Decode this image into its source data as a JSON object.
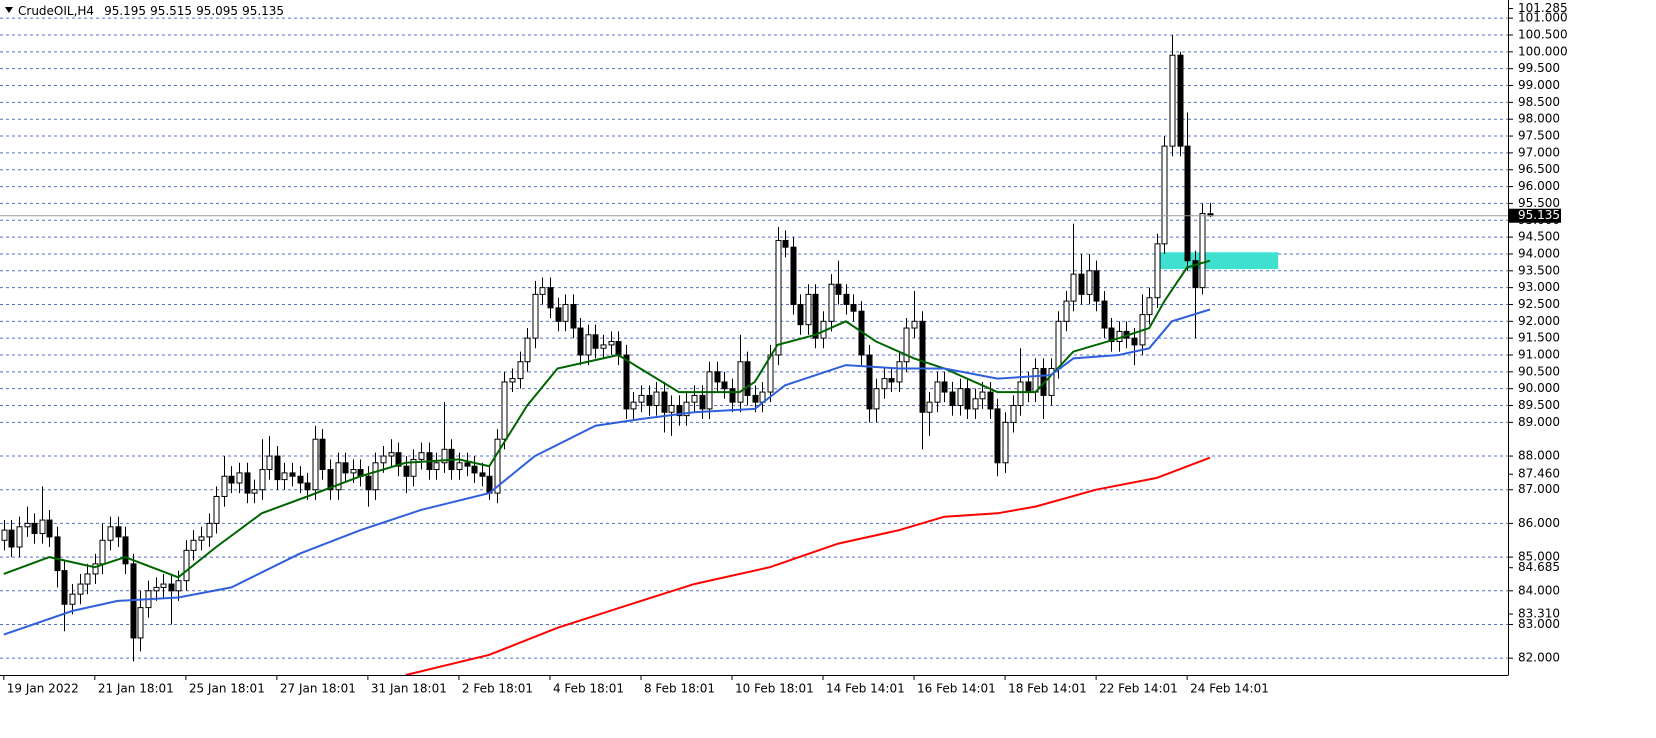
{
  "chart_data": {
    "type": "candlestick",
    "header": {
      "symbol": "CrudeOIL,H4",
      "open": 95.195,
      "high": 95.515,
      "low": 95.095,
      "close": 95.135
    },
    "ylim": [
      81.5,
      101.45
    ],
    "xlim": [
      -0.5,
      198.3
    ],
    "grid": true,
    "bull_color": "#ffffff",
    "bear_color": "#000000",
    "yticks": [
      {
        "value": 101,
        "label": "101.000"
      },
      {
        "value": 100.5,
        "label": "100.500"
      },
      {
        "value": 100,
        "label": "100.000"
      },
      {
        "value": 99.5,
        "label": "99.500"
      },
      {
        "value": 99,
        "label": "99.000"
      },
      {
        "value": 98.5,
        "label": "98.500"
      },
      {
        "value": 98,
        "label": "98.000"
      },
      {
        "value": 97.5,
        "label": "97.500"
      },
      {
        "value": 97,
        "label": "97.000"
      },
      {
        "value": 96.5,
        "label": "96.500"
      },
      {
        "value": 96,
        "label": "96.000"
      },
      {
        "value": 95.5,
        "label": "95.500"
      },
      {
        "value": 95,
        "label": "95.000"
      },
      {
        "value": 94.5,
        "label": "94.500"
      },
      {
        "value": 94,
        "label": "94.000"
      },
      {
        "value": 93.5,
        "label": "93.500"
      },
      {
        "value": 93,
        "label": "93.000"
      },
      {
        "value": 92.5,
        "label": "92.500"
      },
      {
        "value": 92,
        "label": "92.000"
      },
      {
        "value": 91.5,
        "label": "91.500"
      },
      {
        "value": 91,
        "label": "91.000"
      },
      {
        "value": 90.5,
        "label": "90.500"
      },
      {
        "value": 90,
        "label": "90.000"
      },
      {
        "value": 89.5,
        "label": "89.500"
      },
      {
        "value": 89,
        "label": "89.000"
      },
      {
        "value": 88,
        "label": "88.000"
      },
      {
        "value": 87,
        "label": "87.000"
      },
      {
        "value": 86,
        "label": "86.000"
      },
      {
        "value": 85,
        "label": "85.000"
      },
      {
        "value": 84,
        "label": "84.000"
      },
      {
        "value": 83,
        "label": "83.000"
      },
      {
        "value": 82,
        "label": "82.000"
      }
    ],
    "price_labels": [
      {
        "value": 101.285,
        "label": "101.285"
      },
      {
        "value": 87.46,
        "label": "87.460"
      },
      {
        "value": 84.685,
        "label": "84.685"
      },
      {
        "value": 83.31,
        "label": "83.310"
      }
    ],
    "xticks": [
      {
        "value": 0,
        "label": "19 Jan 2022"
      },
      {
        "value": 12,
        "label": "21 Jan 18:01"
      },
      {
        "value": 24,
        "label": "25 Jan 18:01"
      },
      {
        "value": 36,
        "label": "27 Jan 18:01"
      },
      {
        "value": 48,
        "label": "31 Jan 18:01"
      },
      {
        "value": 60,
        "label": "2 Feb 18:01"
      },
      {
        "value": 72,
        "label": "4 Feb 18:01"
      },
      {
        "value": 84,
        "label": "8 Feb 18:01"
      },
      {
        "value": 96,
        "label": "10 Feb 18:01"
      },
      {
        "value": 108,
        "label": "14 Feb 14:01"
      },
      {
        "value": 120,
        "label": "16 Feb 14:01"
      },
      {
        "value": 132,
        "label": "18 Feb 14:01"
      },
      {
        "value": 144,
        "label": "22 Feb 14:01"
      },
      {
        "value": 156,
        "label": "24 Feb 14:01"
      }
    ],
    "open": [
      85.5,
      85.8,
      85.3,
      85.9,
      86.0,
      85.7,
      86.1,
      85.6,
      84.6,
      83.6,
      83.9,
      84.2,
      84.5,
      84.8,
      85.5,
      85.9,
      85.6,
      84.8,
      82.6,
      83.5,
      84.0,
      84.1,
      84.2,
      84.0,
      84.3,
      85.2,
      85.5,
      85.6,
      86.0,
      86.8,
      87.4,
      87.2,
      87.5,
      86.9,
      87.0,
      87.6,
      88.0,
      87.3,
      87.5,
      87.4,
      87.2,
      87.0,
      88.5,
      87.6,
      87.0,
      87.8,
      87.5,
      87.6,
      87.4,
      87.0,
      87.8,
      88.0,
      88.1,
      87.7,
      87.4,
      87.9,
      88.1,
      87.6,
      87.8,
      88.2,
      87.6,
      87.8,
      87.7,
      87.5,
      87.4,
      86.9,
      88.5,
      90.2,
      90.3,
      90.8,
      91.5,
      92.8,
      93.0,
      92.4,
      92.0,
      92.5,
      91.8,
      91.0,
      91.6,
      91.2,
      91.3,
      91.4,
      91.0,
      89.4,
      89.6,
      89.8,
      89.5,
      89.9,
      89.3,
      89.5,
      89.2,
      89.6,
      89.8,
      89.4,
      90.5,
      90.2,
      90.0,
      89.6,
      90.8,
      89.8,
      89.6,
      89.9,
      91.0,
      94.4,
      94.2,
      92.5,
      91.9,
      92.8,
      91.5,
      92.0,
      93.1,
      92.8,
      92.5,
      92.3,
      91.0,
      89.4,
      90.0,
      90.3,
      90.2,
      90.8,
      91.8,
      92.0,
      89.3,
      89.6,
      90.2,
      89.9,
      89.5,
      90.0,
      89.4,
      89.7,
      89.9,
      89.4,
      87.8,
      89.0,
      89.5,
      90.2,
      89.9,
      90.6,
      89.8,
      90.6,
      92.0,
      92.6,
      93.4,
      92.8,
      93.5,
      92.6,
      91.8,
      91.4,
      91.7,
      91.5,
      91.3,
      92.2,
      92.7,
      94.3,
      97.2,
      99.9,
      97.2,
      93.8,
      93.0,
      95.195
    ],
    "high": [
      86.1,
      86.1,
      86.2,
      86.5,
      86.3,
      87.1,
      86.4,
      85.9,
      84.9,
      84.2,
      84.5,
      84.8,
      85.1,
      86.0,
      86.2,
      86.2,
      85.9,
      85.1,
      84.0,
      84.3,
      84.4,
      84.5,
      84.5,
      84.6,
      85.5,
      85.8,
      85.9,
      86.3,
      87.1,
      88.0,
      87.7,
      87.8,
      87.8,
      87.3,
      88.5,
      88.6,
      88.3,
      87.8,
      87.8,
      87.7,
      87.5,
      88.9,
      88.8,
      87.9,
      88.1,
      88.1,
      87.9,
      87.9,
      87.7,
      88.1,
      88.3,
      88.5,
      88.4,
      88.0,
      88.2,
      88.4,
      88.4,
      88.1,
      89.6,
      88.5,
      88.1,
      88.1,
      88.0,
      87.8,
      87.7,
      88.8,
      90.5,
      90.6,
      91.1,
      91.8,
      93.2,
      93.3,
      93.3,
      92.7,
      92.8,
      92.8,
      92.1,
      91.9,
      91.9,
      91.6,
      91.7,
      91.7,
      91.3,
      89.9,
      90.1,
      90.1,
      90.2,
      90.2,
      89.8,
      89.8,
      89.9,
      90.1,
      90.1,
      90.8,
      90.8,
      90.5,
      90.3,
      91.6,
      91.1,
      90.1,
      90.2,
      91.3,
      94.8,
      94.7,
      94.5,
      92.8,
      93.1,
      93.1,
      92.3,
      93.4,
      93.8,
      93.1,
      92.8,
      92.6,
      91.3,
      90.3,
      90.6,
      90.6,
      91.1,
      92.1,
      92.9,
      92.3,
      89.9,
      90.5,
      90.5,
      90.2,
      90.3,
      90.3,
      90.0,
      90.2,
      90.2,
      89.7,
      89.3,
      89.8,
      91.2,
      90.5,
      90.9,
      90.9,
      90.9,
      92.3,
      92.9,
      94.9,
      94.0,
      94.0,
      93.8,
      92.9,
      92.1,
      92.0,
      92.0,
      91.8,
      92.8,
      93.0,
      94.6,
      97.5,
      100.5,
      100.0,
      98.2,
      94.1,
      95.5,
      95.515
    ],
    "low": [
      85.2,
      85.0,
      85.0,
      85.6,
      85.4,
      85.4,
      85.3,
      84.1,
      82.8,
      83.3,
      83.6,
      83.9,
      84.2,
      84.5,
      85.2,
      85.3,
      84.5,
      81.9,
      82.2,
      83.2,
      83.7,
      83.8,
      83.0,
      83.7,
      84.0,
      84.9,
      85.2,
      85.3,
      85.7,
      86.5,
      86.9,
      86.9,
      86.6,
      86.6,
      86.7,
      87.3,
      87.0,
      87.0,
      87.1,
      86.9,
      86.7,
      86.7,
      87.3,
      86.7,
      86.7,
      87.2,
      87.2,
      87.1,
      86.5,
      86.7,
      87.5,
      87.7,
      87.4,
      86.9,
      87.1,
      87.6,
      87.3,
      87.3,
      87.5,
      87.3,
      87.3,
      87.4,
      87.2,
      87.1,
      86.7,
      86.6,
      88.2,
      89.9,
      90.0,
      90.5,
      91.2,
      92.5,
      92.1,
      91.7,
      91.7,
      91.5,
      90.7,
      90.7,
      90.9,
      90.9,
      91.0,
      90.7,
      89.1,
      89.1,
      89.3,
      89.2,
      89.2,
      88.7,
      88.6,
      88.9,
      88.9,
      89.3,
      89.1,
      89.1,
      89.9,
      89.7,
      89.3,
      89.3,
      89.5,
      89.3,
      89.3,
      89.6,
      90.7,
      93.9,
      92.2,
      91.6,
      91.6,
      91.2,
      91.2,
      91.7,
      92.5,
      92.2,
      92.0,
      90.7,
      89.0,
      89.0,
      89.7,
      89.9,
      89.9,
      90.5,
      91.5,
      88.2,
      88.6,
      89.3,
      89.6,
      89.2,
      89.2,
      89.1,
      89.1,
      89.4,
      89.1,
      87.4,
      87.5,
      88.7,
      89.2,
      89.6,
      89.6,
      89.1,
      89.5,
      90.3,
      91.7,
      92.3,
      92.5,
      92.5,
      92.3,
      91.5,
      91.1,
      91.1,
      91.2,
      90.7,
      91.0,
      91.9,
      92.4,
      94.0,
      96.9,
      96.9,
      93.5,
      91.5,
      92.8,
      95.095
    ],
    "close": [
      85.8,
      85.3,
      85.9,
      86.0,
      85.7,
      86.1,
      85.6,
      84.6,
      83.6,
      83.9,
      84.2,
      84.5,
      84.8,
      85.5,
      85.9,
      85.6,
      84.8,
      82.6,
      83.5,
      84.0,
      84.1,
      84.2,
      84.0,
      84.3,
      85.2,
      85.5,
      85.6,
      86.0,
      86.8,
      87.4,
      87.2,
      87.5,
      86.9,
      87.0,
      87.6,
      88.0,
      87.3,
      87.5,
      87.4,
      87.2,
      87.0,
      88.5,
      87.6,
      87.0,
      87.8,
      87.5,
      87.6,
      87.4,
      87.0,
      87.8,
      88.0,
      88.1,
      87.7,
      87.4,
      87.9,
      88.1,
      87.6,
      87.8,
      88.2,
      87.6,
      87.8,
      87.7,
      87.5,
      87.4,
      86.9,
      88.5,
      90.2,
      90.3,
      90.8,
      91.5,
      92.8,
      93.0,
      92.4,
      92.0,
      92.5,
      91.8,
      91.0,
      91.6,
      91.2,
      91.3,
      91.4,
      91.0,
      89.4,
      89.6,
      89.8,
      89.5,
      89.9,
      89.3,
      89.5,
      89.2,
      89.6,
      89.8,
      89.4,
      90.5,
      90.2,
      90.0,
      89.6,
      90.8,
      89.8,
      89.6,
      89.9,
      91.0,
      94.4,
      94.2,
      92.5,
      91.9,
      92.8,
      91.5,
      92.0,
      93.1,
      92.8,
      92.5,
      92.3,
      91.0,
      89.4,
      90.0,
      90.3,
      90.2,
      90.8,
      91.8,
      92.0,
      89.3,
      89.6,
      90.2,
      89.9,
      89.5,
      90.0,
      89.4,
      89.7,
      89.9,
      89.4,
      87.8,
      89.0,
      89.5,
      90.2,
      89.9,
      90.6,
      89.8,
      90.6,
      92.0,
      92.6,
      93.4,
      92.8,
      93.5,
      92.6,
      91.8,
      91.4,
      91.7,
      91.5,
      91.3,
      92.2,
      92.7,
      94.3,
      97.2,
      99.9,
      97.2,
      93.8,
      93.0,
      95.2,
      95.135
    ],
    "moving_averages": [
      {
        "color": "#006400",
        "x": [
          0,
          6,
          12,
          16,
          23,
          28,
          34,
          40,
          47,
          53,
          60,
          64,
          69,
          73,
          81,
          89,
          97,
          99,
          102,
          107,
          111,
          115,
          120,
          124,
          131,
          136,
          141,
          147,
          151,
          153,
          156,
          159
        ],
        "values": [
          84.5,
          85.0,
          84.7,
          85.0,
          84.4,
          85.3,
          86.3,
          86.8,
          87.4,
          87.8,
          87.9,
          87.7,
          89.5,
          90.6,
          91.0,
          89.9,
          89.9,
          90.2,
          91.3,
          91.6,
          92.0,
          91.4,
          90.9,
          90.6,
          89.9,
          89.9,
          91.1,
          91.5,
          91.8,
          92.6,
          93.6,
          93.8
        ]
      },
      {
        "color": "#2f5fdc",
        "x": [
          0,
          9,
          15,
          23,
          30,
          39,
          47,
          55,
          64,
          70,
          78,
          84,
          91,
          99,
          103,
          111,
          118,
          124,
          131,
          138,
          141,
          147,
          151,
          154,
          159
        ],
        "values": [
          82.7,
          83.4,
          83.7,
          83.8,
          84.1,
          85.1,
          85.8,
          86.4,
          86.9,
          88.0,
          88.9,
          89.1,
          89.3,
          89.4,
          90.1,
          90.7,
          90.6,
          90.6,
          90.3,
          90.4,
          90.9,
          91.0,
          91.2,
          92.0,
          92.35
        ]
      },
      {
        "color": "#ff0000",
        "x": [
          53,
          64,
          73,
          84,
          91,
          101,
          110,
          118,
          124,
          131,
          136,
          144,
          152,
          159
        ],
        "values": [
          81.5,
          82.1,
          82.9,
          83.7,
          84.2,
          84.7,
          85.4,
          85.8,
          86.2,
          86.3,
          86.5,
          87.0,
          87.35,
          87.95
        ]
      }
    ],
    "zone": {
      "x": [
        152,
        168
      ],
      "y": [
        93.55,
        94.05
      ],
      "color": "#40e0d0"
    }
  }
}
